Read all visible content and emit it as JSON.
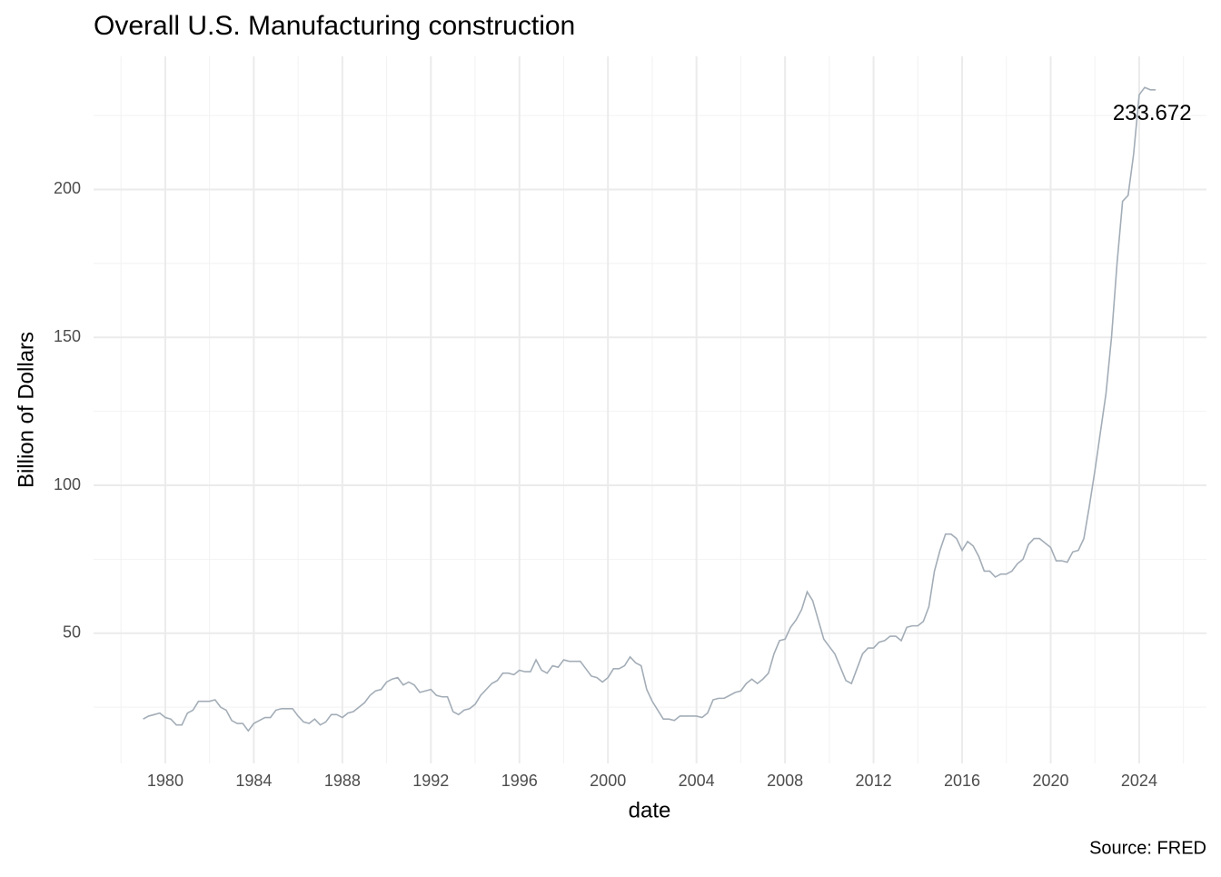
{
  "chart_data": {
    "type": "line",
    "title": "Overall U.S. Manufacturing construction",
    "xlabel": "date",
    "ylabel": "Billion of Dollars",
    "caption": "Source: FRED",
    "color": "#a3adb7",
    "x": [
      1979,
      1979.25,
      1979.5,
      1979.75,
      1980,
      1980.25,
      1980.5,
      1980.75,
      1981,
      1981.25,
      1981.5,
      1981.75,
      1982,
      1982.25,
      1982.5,
      1982.75,
      1983,
      1983.25,
      1983.5,
      1983.75,
      1984,
      1984.25,
      1984.5,
      1984.75,
      1985,
      1985.25,
      1985.5,
      1985.75,
      1986,
      1986.25,
      1986.5,
      1986.75,
      1987,
      1987.25,
      1987.5,
      1987.75,
      1988,
      1988.25,
      1988.5,
      1988.75,
      1989,
      1989.25,
      1989.5,
      1989.75,
      1990,
      1990.25,
      1990.5,
      1990.75,
      1991,
      1991.25,
      1991.5,
      1991.75,
      1992,
      1992.25,
      1992.5,
      1992.75,
      1993,
      1993.25,
      1993.5,
      1993.75,
      1994,
      1994.25,
      1994.5,
      1994.75,
      1995,
      1995.25,
      1995.5,
      1995.75,
      1996,
      1996.25,
      1996.5,
      1996.75,
      1997,
      1997.25,
      1997.5,
      1997.75,
      1998,
      1998.25,
      1998.5,
      1998.75,
      1999,
      1999.25,
      1999.5,
      1999.75,
      2000,
      2000.25,
      2000.5,
      2000.75,
      2001,
      2001.25,
      2001.5,
      2001.75,
      2002,
      2002.25,
      2002.5,
      2002.75,
      2003,
      2003.25,
      2003.5,
      2003.75,
      2004,
      2004.25,
      2004.5,
      2004.75,
      2005,
      2005.25,
      2005.5,
      2005.75,
      2006,
      2006.25,
      2006.5,
      2006.75,
      2007,
      2007.25,
      2007.5,
      2007.75,
      2008,
      2008.25,
      2008.5,
      2008.75,
      2009,
      2009.25,
      2009.5,
      2009.75,
      2010,
      2010.25,
      2010.5,
      2010.75,
      2011,
      2011.25,
      2011.5,
      2011.75,
      2012,
      2012.25,
      2012.5,
      2012.75,
      2013,
      2013.25,
      2013.5,
      2013.75,
      2014,
      2014.25,
      2014.5,
      2014.75,
      2015,
      2015.25,
      2015.5,
      2015.75,
      2016,
      2016.25,
      2016.5,
      2016.75,
      2017,
      2017.25,
      2017.5,
      2017.75,
      2018,
      2018.25,
      2018.5,
      2018.75,
      2019,
      2019.25,
      2019.5,
      2019.75,
      2020,
      2020.25,
      2020.5,
      2020.75,
      2021,
      2021.25,
      2021.5,
      2021.75,
      2022,
      2022.25,
      2022.5,
      2022.75,
      2023,
      2023.25,
      2023.5,
      2023.75,
      2024,
      2024.25,
      2024.5,
      2024.75
    ],
    "values": [
      21,
      22,
      22.5,
      23,
      21.5,
      21,
      19,
      19,
      23,
      24,
      27,
      27,
      27,
      27.5,
      25,
      24,
      20.5,
      19.5,
      19.5,
      17,
      19.5,
      20.5,
      21.5,
      21.5,
      24,
      24.5,
      24.5,
      24.5,
      22,
      20,
      19.5,
      21,
      19,
      20,
      22.5,
      22.5,
      21.5,
      23,
      23.5,
      25,
      26.5,
      29,
      30.5,
      31,
      33.5,
      34.5,
      35,
      32.5,
      33.5,
      32.5,
      30,
      30.5,
      31,
      29,
      28.5,
      28.5,
      23.5,
      22.5,
      24,
      24.5,
      26,
      29,
      31,
      33,
      34,
      36.5,
      36.5,
      36,
      37.5,
      37,
      37,
      41,
      37.5,
      36.5,
      39,
      38.5,
      41,
      40.5,
      40.5,
      40.5,
      38,
      35.5,
      35,
      33.5,
      35,
      38,
      38,
      39,
      42,
      40,
      39,
      31,
      27,
      24,
      21,
      21,
      20.5,
      22,
      22,
      22,
      22,
      21.5,
      23,
      27.5,
      28,
      28,
      29,
      30,
      30.5,
      33,
      34.5,
      33,
      34.5,
      36.5,
      43,
      47.5,
      48,
      52,
      54.5,
      58,
      64,
      61,
      54.5,
      48,
      45.5,
      43,
      38.5,
      34,
      33,
      38,
      43,
      45,
      45,
      47,
      47.5,
      49,
      49,
      47.5,
      52,
      52.5,
      52.5,
      54,
      59,
      71,
      78,
      83.5,
      83.5,
      82,
      78,
      81,
      79.5,
      76,
      71,
      71,
      69,
      70,
      70,
      71,
      73.5,
      75,
      80,
      82,
      82,
      80.5,
      79,
      74.5,
      74.5,
      74,
      77.5,
      78,
      82,
      93,
      105,
      118,
      131,
      150,
      175,
      196,
      198,
      212,
      232,
      234.5,
      233.7,
      233.672
    ],
    "xlim": [
      1976.76,
      2027.04
    ],
    "xticks": [
      1980,
      1984,
      1988,
      1992,
      1996,
      2000,
      2004,
      2008,
      2012,
      2016,
      2020,
      2024
    ],
    "x_minor_ticks": [
      1978,
      1982,
      1986,
      1990,
      1994,
      1998,
      2002,
      2006,
      2010,
      2014,
      2018,
      2022,
      2026
    ],
    "ylim": [
      6,
      245
    ],
    "yticks": [
      50,
      100,
      150,
      200
    ],
    "y_minor_ticks": [
      25,
      75,
      125,
      175,
      225
    ],
    "grid": true
  }
}
